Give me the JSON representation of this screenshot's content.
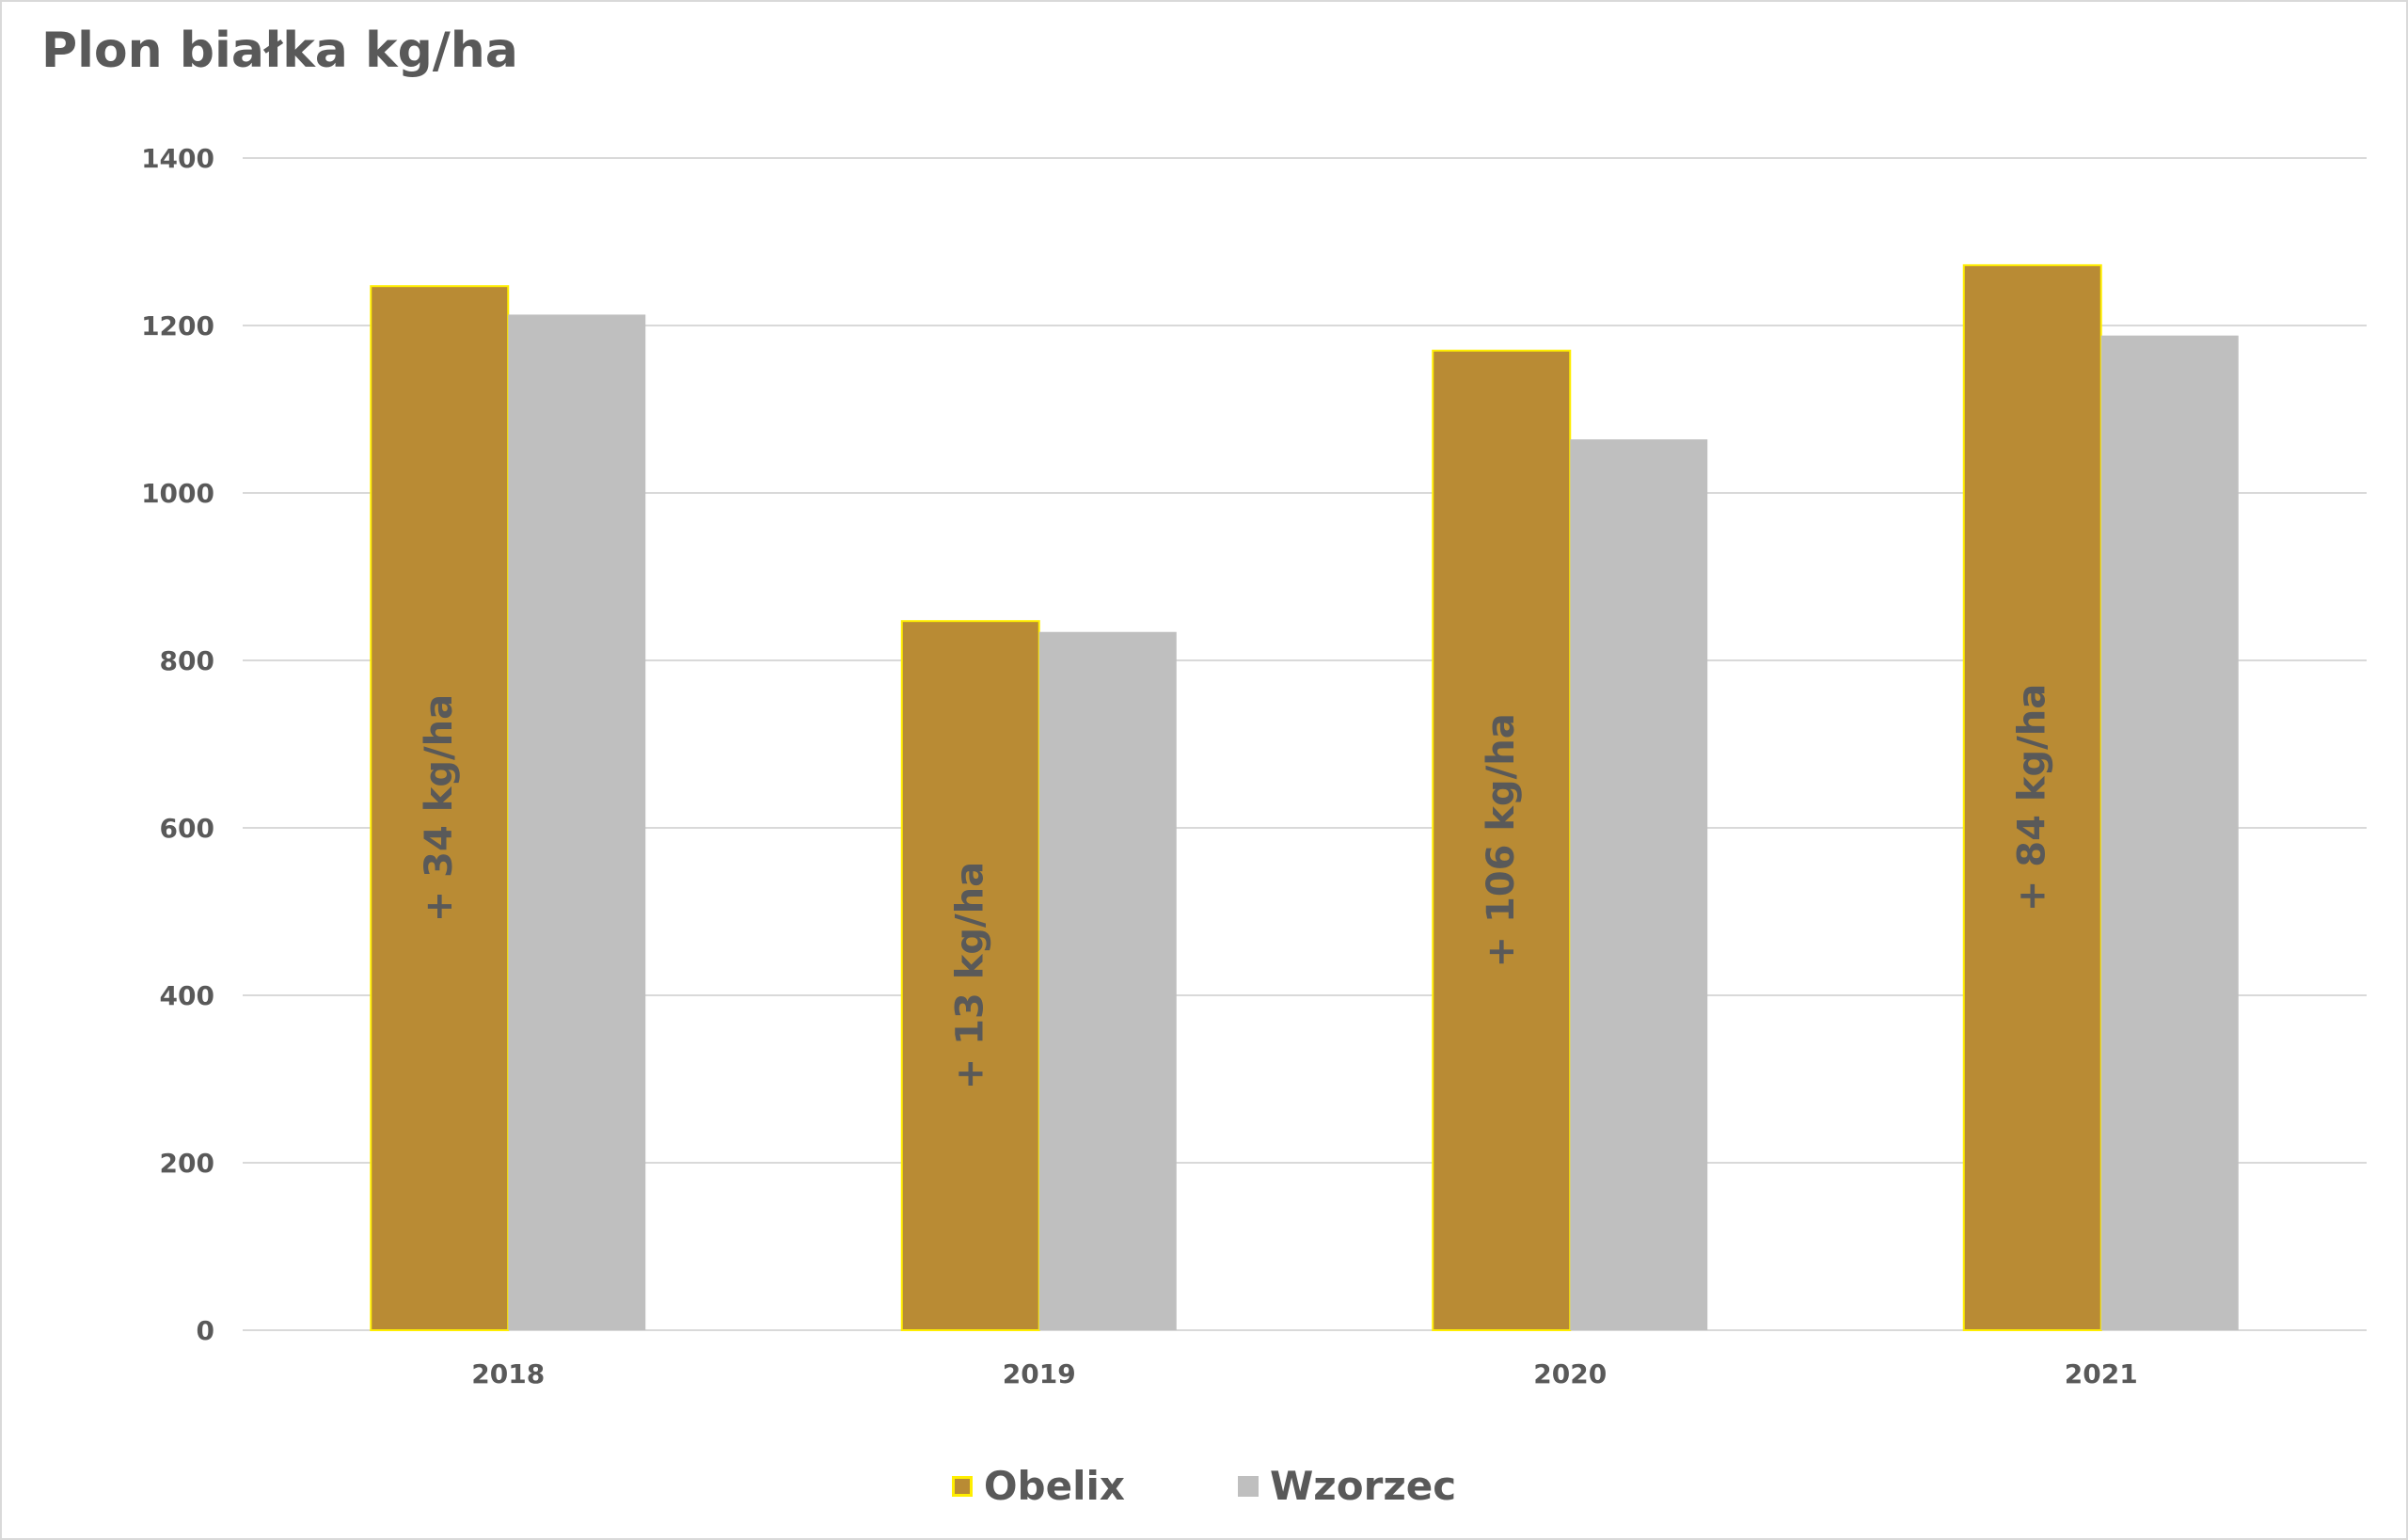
{
  "chart_data": {
    "type": "bar",
    "title": "Plon białka kg/ha",
    "categories": [
      "2018",
      "2019",
      "2020",
      "2021"
    ],
    "series": [
      {
        "name": "Obelix",
        "values": [
          1247,
          847,
          1170,
          1272
        ],
        "color": "#b98b34",
        "border_color": "#ffee00"
      },
      {
        "name": "Wzorzec",
        "values": [
          1213,
          834,
          1064,
          1188
        ],
        "color": "#bfbfbf"
      }
    ],
    "annotations": [
      "+ 34 kg/ha",
      "+ 13 kg/ha",
      "+ 106 kg/ha",
      "+ 84 kg/ha"
    ],
    "ylim": [
      0,
      1400
    ],
    "yticks": [
      0,
      200,
      400,
      600,
      800,
      1000,
      1200,
      1400
    ],
    "xlabel": "",
    "ylabel": "",
    "grid": true,
    "legend_position": "bottom",
    "text_color": "#595959",
    "grid_color": "#d9d9d9"
  }
}
